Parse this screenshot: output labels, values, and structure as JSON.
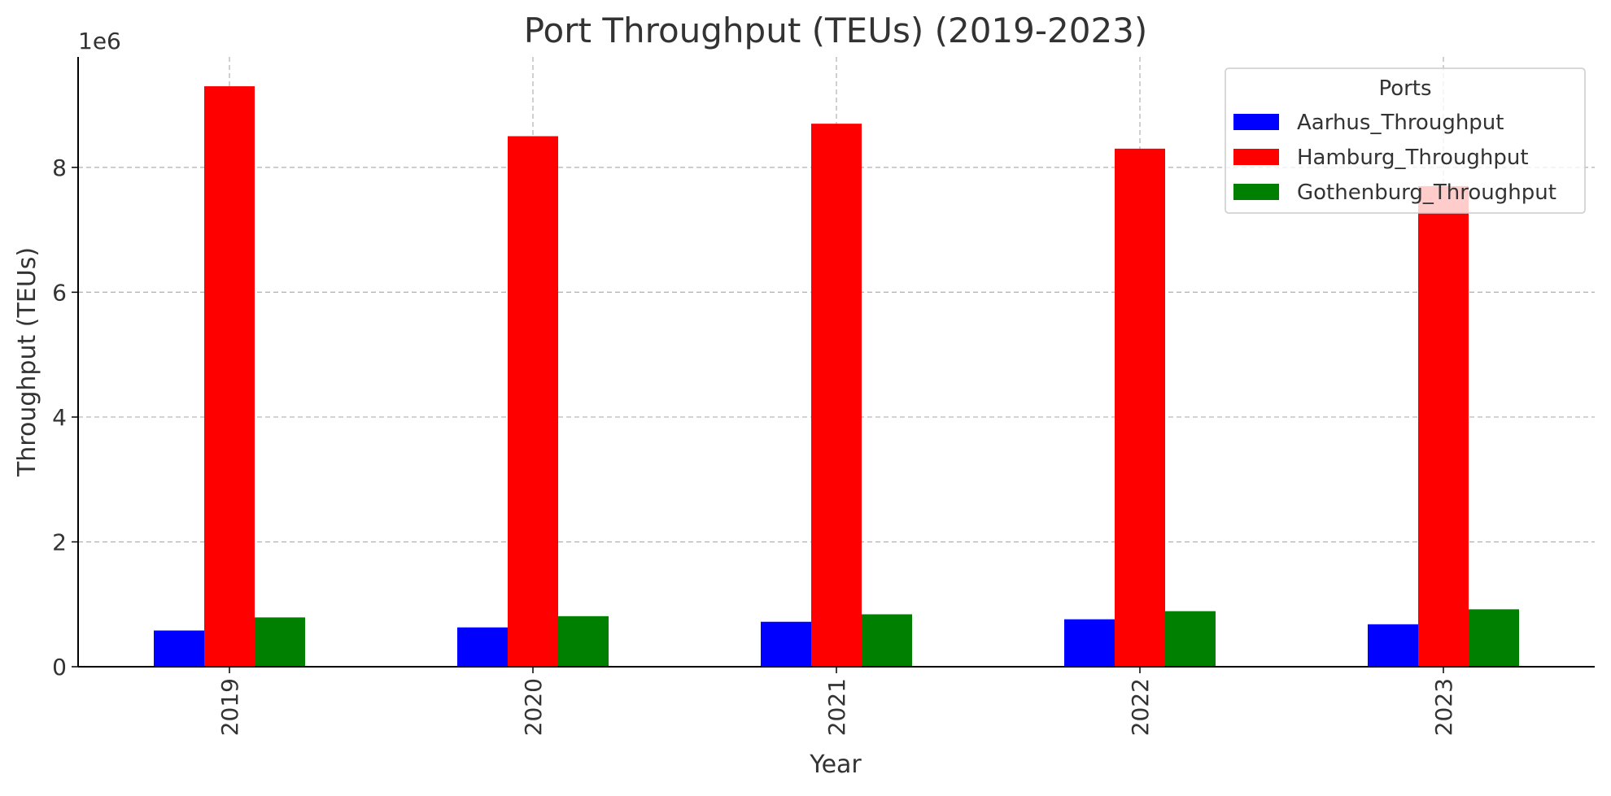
{
  "chart_data": {
    "type": "bar",
    "title": "Port Throughput (TEUs) (2019-2023)",
    "xlabel": "Year",
    "ylabel": "Throughput (TEUs)",
    "y_offset_label": "1e6",
    "y_scale_factor": 1000000,
    "categories": [
      "2019",
      "2020",
      "2021",
      "2022",
      "2023"
    ],
    "yticks": [
      0,
      2,
      4,
      6,
      8
    ],
    "ylim": [
      0,
      9.77
    ],
    "grid": true,
    "legend": {
      "title": "Ports",
      "placement": "top-right"
    },
    "series": [
      {
        "name": "Aarhus_Throughput",
        "color": "#0000ff",
        "values": [
          0.58,
          0.63,
          0.72,
          0.76,
          0.68
        ]
      },
      {
        "name": "Hamburg_Throughput",
        "color": "#ff0000",
        "values": [
          9.3,
          8.5,
          8.7,
          8.3,
          7.7
        ]
      },
      {
        "name": "Gothenburg_Throughput",
        "color": "#008000",
        "values": [
          0.79,
          0.81,
          0.84,
          0.89,
          0.92
        ]
      }
    ]
  }
}
